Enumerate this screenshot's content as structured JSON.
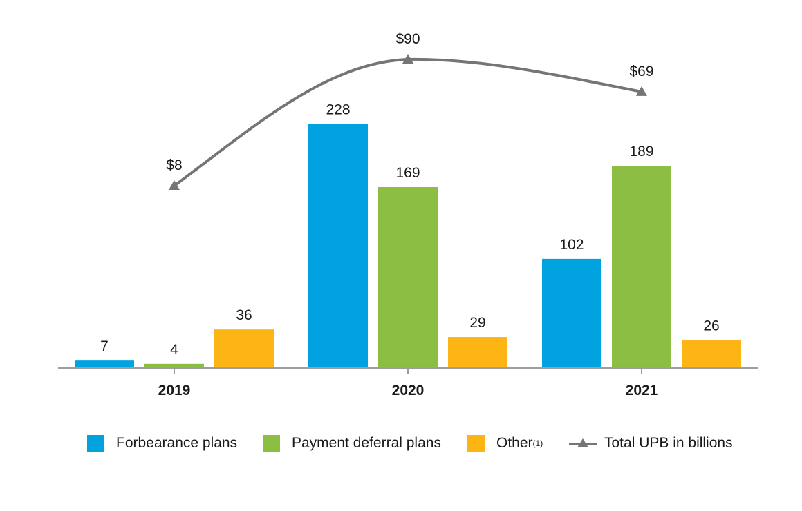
{
  "chart_data": {
    "type": "bar",
    "categories": [
      "2019",
      "2020",
      "2021"
    ],
    "series": [
      {
        "name": "Forbearance plans",
        "values": [
          7,
          228,
          102
        ],
        "color": "#00A3E0"
      },
      {
        "name": "Payment deferral plans",
        "values": [
          4,
          169,
          189
        ],
        "color": "#8BBE43"
      },
      {
        "name": "Other",
        "values": [
          36,
          29,
          26
        ],
        "color": "#FDB515"
      }
    ],
    "bar_labels": [
      [
        "7",
        "228",
        "102"
      ],
      [
        "4",
        "169",
        "189"
      ],
      [
        "36",
        "29",
        "26"
      ]
    ],
    "line_series": {
      "name": "Total UPB in billions",
      "values": [
        8,
        90,
        69
      ],
      "labels": [
        "$8",
        "$90",
        "$69"
      ],
      "color": "#757575",
      "marker": "triangle"
    },
    "ylim": [
      0,
      230
    ],
    "line_ylim": [
      0,
      100
    ],
    "grid": false,
    "legend_position": "bottom"
  },
  "legend": {
    "forbearance": "Forbearance plans",
    "deferral": "Payment deferral plans",
    "other": "Other",
    "other_sup": "(1)",
    "upb": "Total UPB in billions"
  }
}
